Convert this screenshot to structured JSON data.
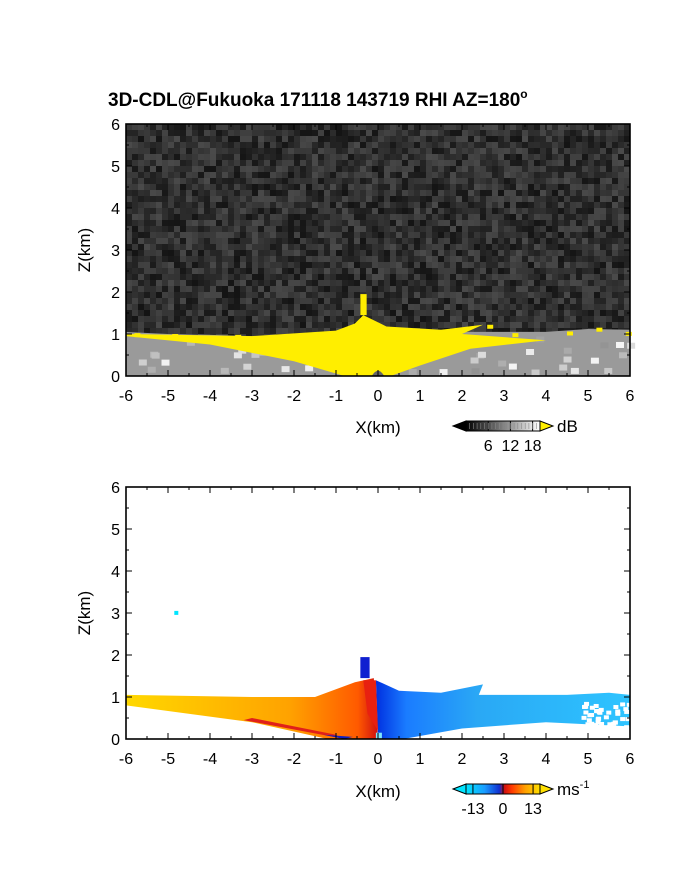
{
  "chart_data": [
    {
      "type": "heatmap",
      "title": "3D-CDL@Fukuoka 171118 143719 RHI AZ=180",
      "title_superscript": "o",
      "xlabel": "X(km)",
      "ylabel": "Z(km)",
      "xlim": [
        -6,
        6
      ],
      "ylim": [
        0,
        6
      ],
      "x_ticks": [
        "-6",
        "-5",
        "-4",
        "-3",
        "-2",
        "-1",
        "0",
        "1",
        "2",
        "3",
        "4",
        "5",
        "6"
      ],
      "y_ticks": [
        "0",
        "1",
        "2",
        "3",
        "4",
        "5",
        "6"
      ],
      "colormap": "grayscale (black to white), saturated yellow above top",
      "colorbar_unit": "dB",
      "colorbar_ticks": [
        "6",
        "12",
        "18"
      ],
      "colorbar_range": [
        0,
        20
      ],
      "background": "#2a2a2a",
      "saturation_color": "#ffee00",
      "echo_top_km": 1.0,
      "plume_top_km": 1.95
    },
    {
      "type": "heatmap",
      "xlabel": "X(km)",
      "ylabel": "Z(km)",
      "xlim": [
        -6,
        6
      ],
      "ylim": [
        0,
        6
      ],
      "x_ticks": [
        "-6",
        "-5",
        "-4",
        "-3",
        "-2",
        "-1",
        "0",
        "1",
        "2",
        "3",
        "4",
        "5",
        "6"
      ],
      "y_ticks": [
        "0",
        "1",
        "2",
        "3",
        "4",
        "5",
        "6"
      ],
      "colormap": "diverging: cyan/blue (negative) to red/orange/yellow (positive)",
      "colorbar_unit": "ms",
      "colorbar_unit_superscript": "-1",
      "colorbar_ticks": [
        "-13",
        "0",
        "13"
      ],
      "colorbar_range": [
        -16,
        16
      ],
      "negative_side": "x > 0",
      "positive_side": "x < 0",
      "echo_top_km": 1.0,
      "plume_top_km": 1.95
    }
  ]
}
